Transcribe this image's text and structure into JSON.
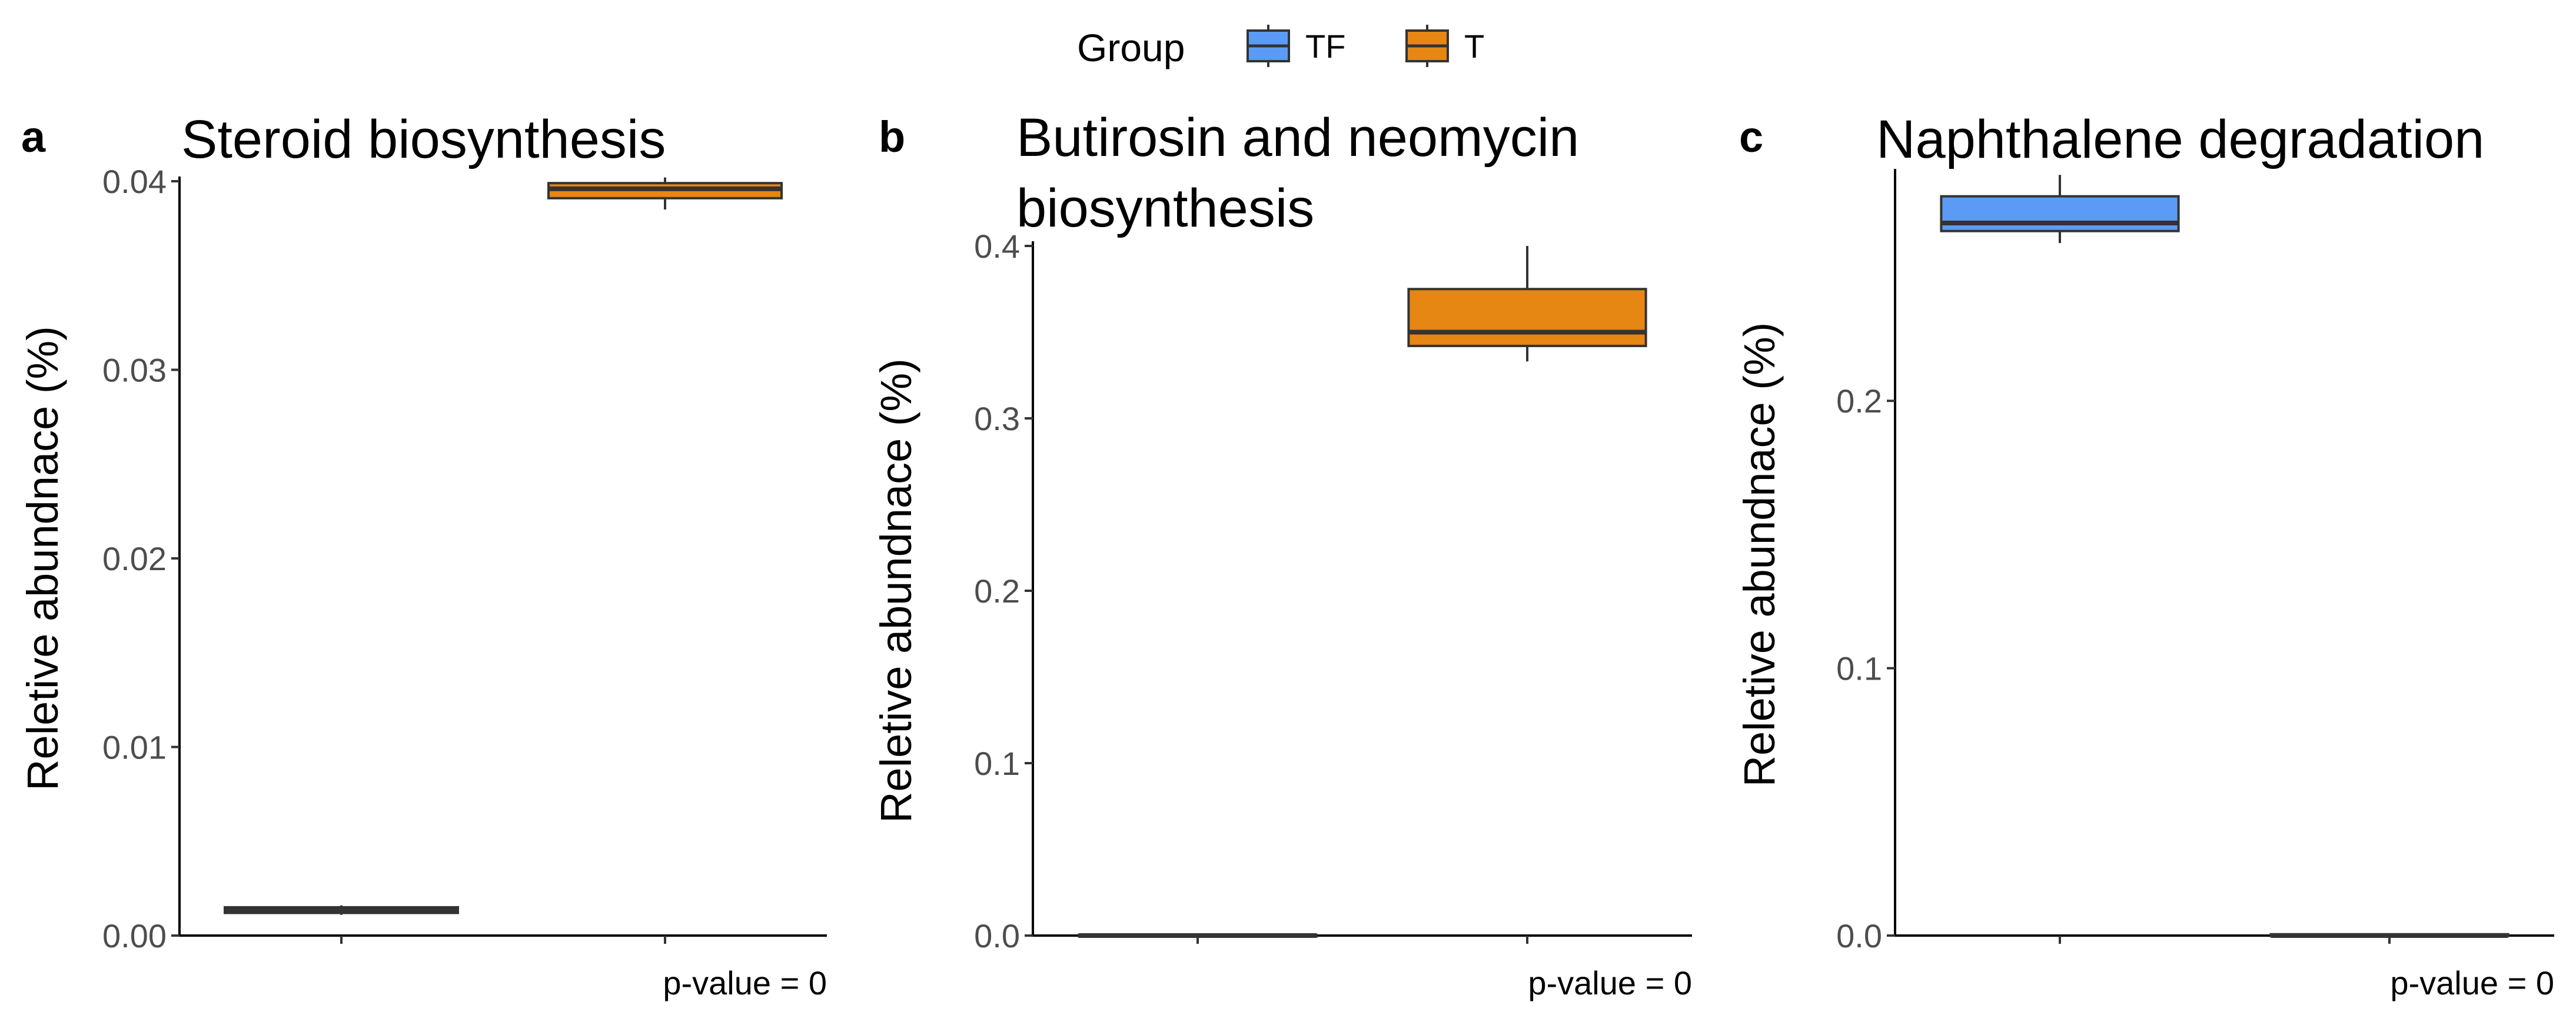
{
  "legend": {
    "title": "Group",
    "items": [
      {
        "label": "TF",
        "color": "#5b9bf5"
      },
      {
        "label": "T",
        "color": "#e68613"
      }
    ]
  },
  "chart_data": [
    {
      "type": "box",
      "panel_label": "a",
      "title_lines": [
        "Steroid biosynthesis"
      ],
      "ylabel": "Reletive abundnace (%)",
      "ylim": [
        0,
        0.04
      ],
      "yticks": [
        0,
        0.01,
        0.02,
        0.03,
        0.04
      ],
      "ytick_labels": [
        "0.00",
        "0.01",
        "0.02",
        "0.03",
        "0.04"
      ],
      "annotation": "p-value = 0",
      "groups": [
        {
          "name": "TF",
          "color": "#5b9bf5",
          "min": 0.0011,
          "q1": 0.0012,
          "median": 0.00135,
          "q3": 0.0015,
          "max": 0.0016
        },
        {
          "name": "T",
          "color": "#e68613",
          "min": 0.0385,
          "q1": 0.0391,
          "median": 0.0396,
          "q3": 0.0399,
          "max": 0.0402
        }
      ]
    },
    {
      "type": "box",
      "panel_label": "b",
      "title_lines": [
        "Butirosin and neomycin",
        "biosynthesis"
      ],
      "ylabel": "Reletive abundnace (%)",
      "ylim": [
        0,
        0.4
      ],
      "yticks": [
        0,
        0.1,
        0.2,
        0.3,
        0.4
      ],
      "ytick_labels": [
        "0.0",
        "0.1",
        "0.2",
        "0.3",
        "0.4"
      ],
      "annotation": "p-value = 0",
      "groups": [
        {
          "name": "TF",
          "color": "#5b9bf5",
          "min": 0.0,
          "q1": 0.0,
          "median": 0.0,
          "q3": 0.0005,
          "max": 0.0008
        },
        {
          "name": "T",
          "color": "#e68613",
          "min": 0.333,
          "q1": 0.342,
          "median": 0.35,
          "q3": 0.375,
          "max": 0.4
        }
      ]
    },
    {
      "type": "box",
      "panel_label": "c",
      "title_lines": [
        "Naphthalene degradation"
      ],
      "ylabel": "Reletive abundnace (%)",
      "ylim": [
        0,
        0.285
      ],
      "yticks": [
        0,
        0.1,
        0.2
      ],
      "ytick_labels": [
        "0.0",
        "0.1",
        "0.2"
      ],
      "annotation": "p-value = 0",
      "groups": [
        {
          "name": "TF",
          "color": "#5b9bf5",
          "min": 0.259,
          "q1": 0.2635,
          "median": 0.2665,
          "q3": 0.2765,
          "max": 0.2845
        },
        {
          "name": "T",
          "color": "#e68613",
          "min": 0.0,
          "q1": 0.0,
          "median": 0.0,
          "q3": 0.0005,
          "max": 0.0008
        }
      ]
    }
  ]
}
